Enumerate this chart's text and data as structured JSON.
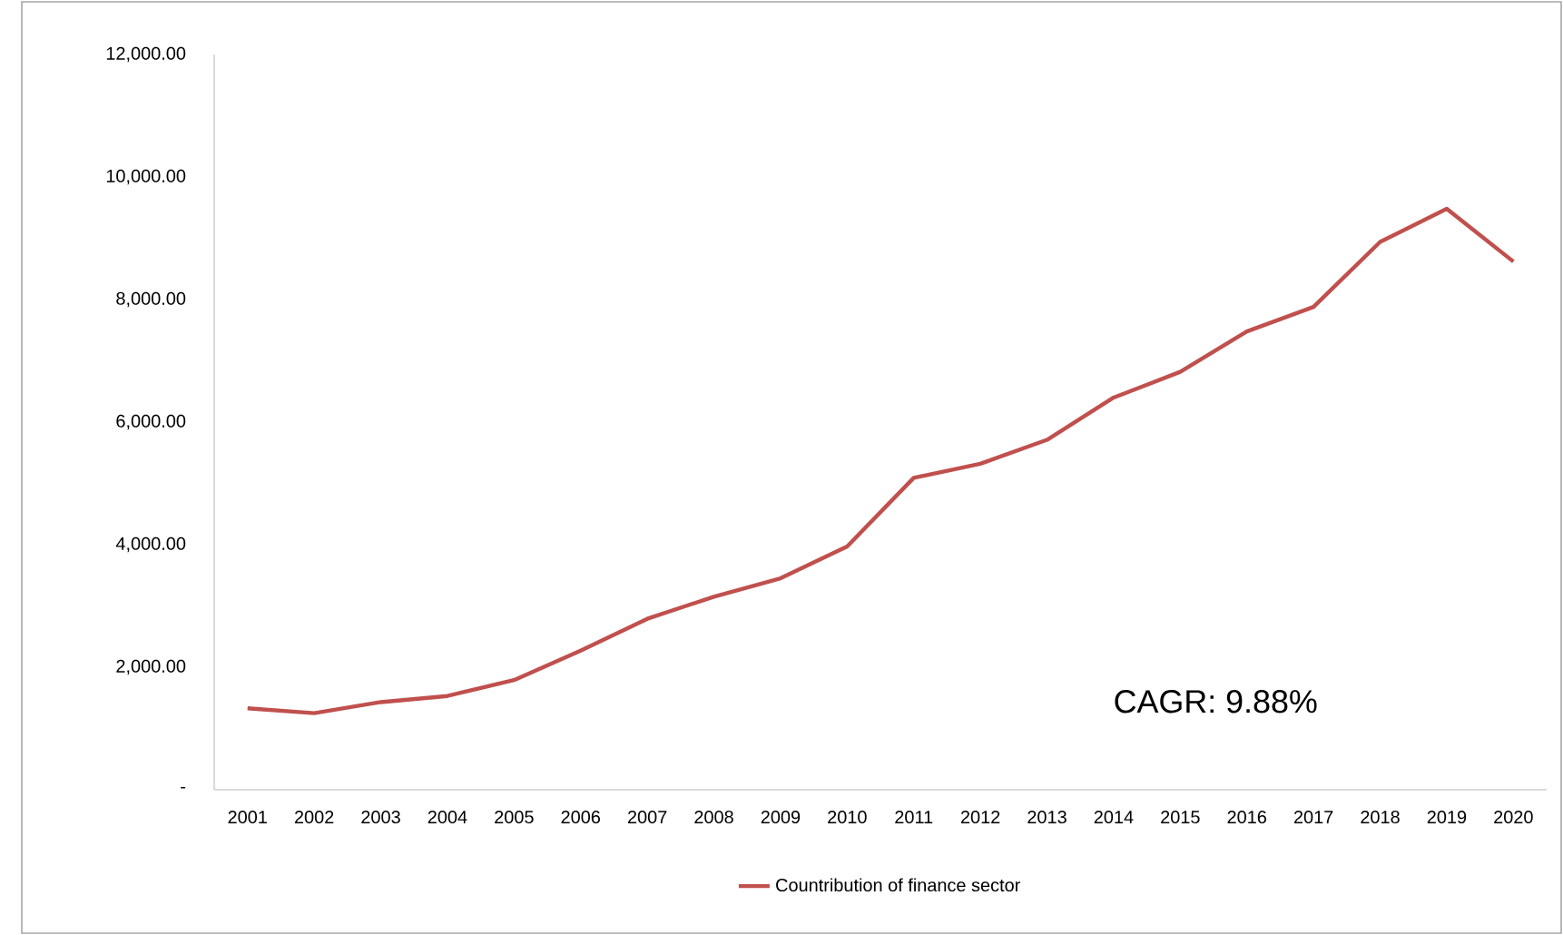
{
  "chart_data": {
    "type": "line",
    "categories": [
      "2001",
      "2002",
      "2003",
      "2004",
      "2005",
      "2006",
      "2007",
      "2008",
      "2009",
      "2010",
      "2011",
      "2012",
      "2013",
      "2014",
      "2015",
      "2016",
      "2017",
      "2018",
      "2019",
      "2020"
    ],
    "series": [
      {
        "name": "Countribution of finance sector",
        "color": "#c0504d",
        "values": [
          1330,
          1250,
          1430,
          1530,
          1790,
          2270,
          2790,
          3150,
          3450,
          3970,
          5090,
          5320,
          5710,
          6400,
          6820,
          7480,
          7880,
          8940,
          9480,
          8620
        ]
      }
    ],
    "ylim": [
      0,
      12000
    ],
    "yticks": [
      {
        "value": 0,
        "label": "-"
      },
      {
        "value": 2000,
        "label": "2,000.00"
      },
      {
        "value": 4000,
        "label": "4,000.00"
      },
      {
        "value": 6000,
        "label": "6,000.00"
      },
      {
        "value": 8000,
        "label": "8,000.00"
      },
      {
        "value": 10000,
        "label": "10,000.00"
      },
      {
        "value": 12000,
        "label": "12,000.00"
      }
    ],
    "grid": false,
    "legend": "bottom",
    "marker": "none",
    "line_style": "solid",
    "annotations": [
      "CAGR: 9.88%"
    ]
  }
}
